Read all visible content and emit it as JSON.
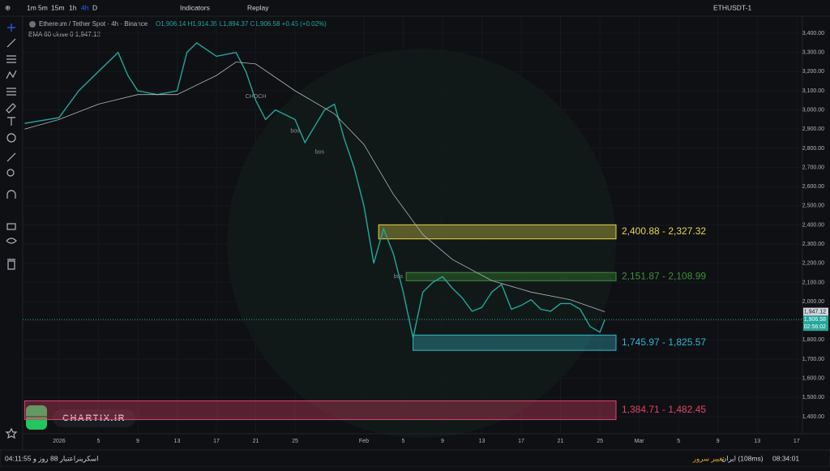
{
  "toolbar": {
    "timeframes": [
      "1m",
      "5m",
      "15m",
      "1h",
      "4h",
      "D"
    ],
    "indicators": "Indicators",
    "replay": "Replay",
    "symbol": "ETHUSDT-1"
  },
  "legend": {
    "title": "Ethereum / Tether Spot · 4h · Binance",
    "ohlc": "O1,906.14 H1,914.35 L1,894.37 C1,906.58 +0.45 (+0.02%)",
    "ema": "EMA 60 close 0 1,947.12"
  },
  "chart_data": {
    "type": "line",
    "x": [
      -3.5,
      0,
      2,
      4,
      6,
      7,
      8,
      10,
      12,
      13,
      14,
      16,
      18,
      19,
      20,
      21,
      22,
      24,
      25,
      27,
      28,
      29,
      30,
      31,
      32,
      33,
      34,
      35,
      36,
      37,
      38,
      39,
      40,
      41,
      42,
      43,
      44,
      45,
      46,
      47,
      48,
      49,
      50,
      51,
      52,
      53,
      54,
      55,
      55.5
    ],
    "series": [
      {
        "name": "ETHUSDT",
        "color": "#26a69a",
        "values": [
          2930,
          2960,
          3100,
          3200,
          3300,
          3180,
          3100,
          3080,
          3100,
          3300,
          3350,
          3280,
          3300,
          3200,
          3050,
          2950,
          3000,
          2950,
          2830,
          3000,
          3030,
          2850,
          2700,
          2500,
          2200,
          2380,
          2250,
          2050,
          1810,
          2050,
          2100,
          2130,
          2070,
          2020,
          1950,
          1970,
          2050,
          2090,
          1960,
          1980,
          2010,
          1960,
          1950,
          1990,
          1990,
          1960,
          1870,
          1840,
          1906.58
        ]
      },
      {
        "name": "EMA 60",
        "color": "#b2b5be",
        "x": [
          -3.5,
          0,
          4,
          8,
          12,
          16,
          18,
          20,
          24,
          28,
          31,
          34,
          37,
          40,
          44,
          48,
          52,
          55.5
        ],
        "values": [
          2900,
          2950,
          3030,
          3080,
          3080,
          3180,
          3250,
          3240,
          3100,
          2980,
          2820,
          2560,
          2350,
          2220,
          2110,
          2050,
          2010,
          1947.12
        ]
      }
    ],
    "xlim": [
      -3.7,
      75.6
    ],
    "ylim": [
      1311,
      3489
    ],
    "xticks": [
      {
        "value": 0,
        "label": "2026"
      },
      {
        "value": 4,
        "label": "5"
      },
      {
        "value": 8,
        "label": "9"
      },
      {
        "value": 12,
        "label": "13"
      },
      {
        "value": 16,
        "label": "17"
      },
      {
        "value": 20,
        "label": "21"
      },
      {
        "value": 24,
        "label": "25"
      },
      {
        "value": 31,
        "label": "Feb"
      },
      {
        "value": 35,
        "label": "5"
      },
      {
        "value": 39,
        "label": "9"
      },
      {
        "value": 43,
        "label": "13"
      },
      {
        "value": 47,
        "label": "17"
      },
      {
        "value": 51,
        "label": "21"
      },
      {
        "value": 55,
        "label": "25"
      },
      {
        "value": 59,
        "label": "Mar"
      },
      {
        "value": 63,
        "label": "5"
      },
      {
        "value": 67,
        "label": "9"
      },
      {
        "value": 71,
        "label": "13"
      },
      {
        "value": 75,
        "label": "17"
      }
    ],
    "yticks": [
      {
        "value": 1400,
        "label": "1,400.00"
      },
      {
        "value": 1500,
        "label": "1,500.00"
      },
      {
        "value": 1600,
        "label": "1,600.00"
      },
      {
        "value": 1700,
        "label": "1,700.00"
      },
      {
        "value": 1800,
        "label": "1,800.00"
      },
      {
        "value": 1900,
        "label": "1,900.00"
      },
      {
        "value": 2000,
        "label": "2,000.00"
      },
      {
        "value": 2100,
        "label": "2,100.00"
      },
      {
        "value": 2200,
        "label": "2,200.00"
      },
      {
        "value": 2300,
        "label": "2,300.00"
      },
      {
        "value": 2400,
        "label": "2,400.00"
      },
      {
        "value": 2500,
        "label": "2,500.00"
      },
      {
        "value": 2600,
        "label": "2,600.00"
      },
      {
        "value": 2700,
        "label": "2,700.00"
      },
      {
        "value": 2800,
        "label": "2,800.00"
      },
      {
        "value": 2900,
        "label": "2,900.00"
      },
      {
        "value": 3000,
        "label": "3,000.00"
      },
      {
        "value": 3100,
        "label": "3,100.00"
      },
      {
        "value": 3200,
        "label": "3,200.00"
      },
      {
        "value": 3300,
        "label": "3,300.00"
      },
      {
        "value": 3400,
        "label": "3,400.00"
      }
    ],
    "zones": [
      {
        "label": "2,400.88 - 2,327.32",
        "high": 2400.88,
        "low": 2327.32,
        "color": "#e6d64a",
        "start": 32.5
      },
      {
        "label": "2,151.87 - 2,108.99",
        "high": 2151.87,
        "low": 2108.99,
        "color": "#3f8f3a",
        "start": 35.3
      },
      {
        "label": "1,745.97 - 1,825.57",
        "low": 1745.97,
        "high": 1825.57,
        "color": "#35b7c9",
        "start": 36
      },
      {
        "label": "1,384.71 - 1,482.45",
        "low": 1384.71,
        "high": 1482.45,
        "color": "#e0436a",
        "start": -3.5
      }
    ],
    "annotations": [
      "CHOCH",
      "bos",
      "bos",
      "bos"
    ],
    "ema_last": {
      "value": 1947.12,
      "label": "1,947.12"
    },
    "last_price": {
      "value": 1906.58,
      "label": "1,906.58"
    },
    "countdown": "02:56:02"
  },
  "watermark": "CHARTIX.IR",
  "status_bar": {
    "credit": "04:11:55 اعتبار 88 روز و",
    "screener": "اسکرینر",
    "server": "ایران (108ms)",
    "change_server": "تغییر سرور",
    "clock": "08:34:01"
  }
}
